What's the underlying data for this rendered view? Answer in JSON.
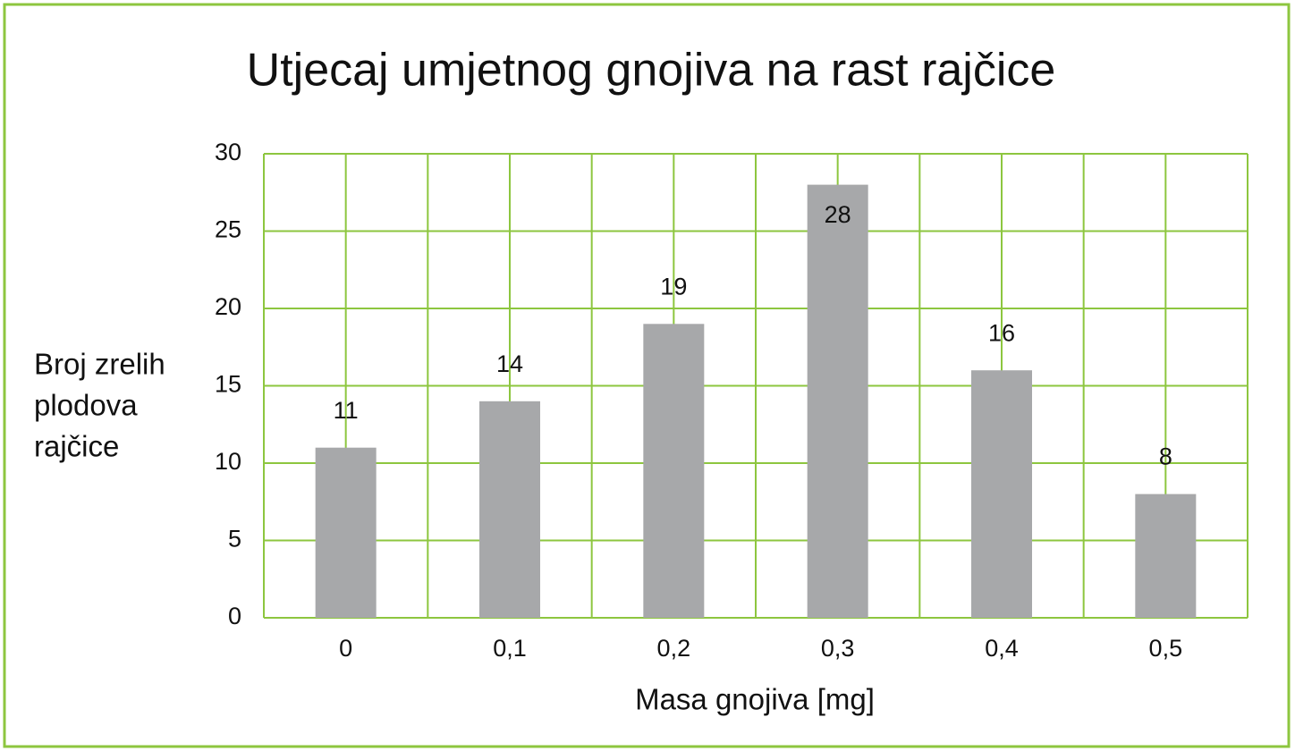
{
  "chart_data": {
    "type": "bar",
    "title": "Utjecaj umjetnog gnojiva na rast rajčice",
    "xlabel": "Masa gnojiva [mg]",
    "ylabel": [
      "Broj zrelih",
      "plodova",
      "rajčice"
    ],
    "categories": [
      "0",
      "0,1",
      "0,2",
      "0,3",
      "0,4",
      "0,5"
    ],
    "values": [
      11,
      14,
      19,
      28,
      16,
      8
    ],
    "color": "#a7a8aa",
    "grid_color": "#8dc63f",
    "ylim": [
      0,
      30
    ],
    "yticks": [
      0,
      5,
      10,
      15,
      20,
      25,
      30
    ],
    "grid": true
  }
}
